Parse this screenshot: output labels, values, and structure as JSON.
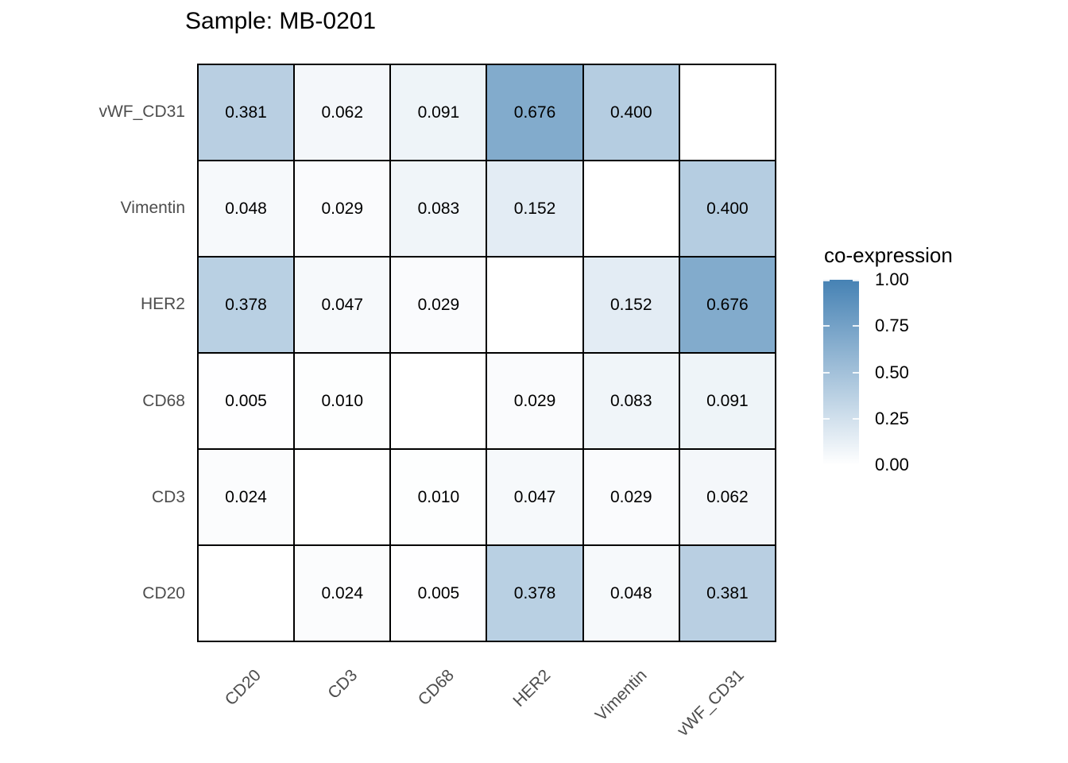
{
  "chart_data": {
    "type": "heatmap",
    "title": "Sample: MB-0201",
    "x_categories": [
      "CD20",
      "CD3",
      "CD68",
      "HER2",
      "Vimentin",
      "vWF_CD31"
    ],
    "y_categories_top_to_bottom": [
      "vWF_CD31",
      "Vimentin",
      "HER2",
      "CD68",
      "CD3",
      "CD20"
    ],
    "matrix_rows_top_to_bottom": [
      [
        0.381,
        0.062,
        0.091,
        0.676,
        0.4,
        null
      ],
      [
        0.048,
        0.029,
        0.083,
        0.152,
        null,
        0.4
      ],
      [
        0.378,
        0.047,
        0.029,
        null,
        0.152,
        0.676
      ],
      [
        0.005,
        0.01,
        null,
        0.029,
        0.083,
        0.091
      ],
      [
        0.024,
        null,
        0.01,
        0.047,
        0.029,
        0.062
      ],
      [
        null,
        0.024,
        0.005,
        0.378,
        0.048,
        0.381
      ]
    ],
    "diagonal_blank": true,
    "value_decimals": 3,
    "value_range": [
      0,
      1
    ],
    "grid_on": true,
    "legend": {
      "title": "co-expression",
      "position": "right",
      "orientation": "vertical",
      "tick_labels": [
        "1.00",
        "0.75",
        "0.50",
        "0.25",
        "0.00"
      ],
      "tick_values": [
        1.0,
        0.75,
        0.5,
        0.25,
        0.0
      ]
    },
    "colors": {
      "low": "#ffffff",
      "high": "#4682b4",
      "na_fill": "#ffffff",
      "cell_border": "#000000",
      "axis_text": "#4d4d4d",
      "title_text": "#000000",
      "cell_value_text": "#000000"
    }
  }
}
